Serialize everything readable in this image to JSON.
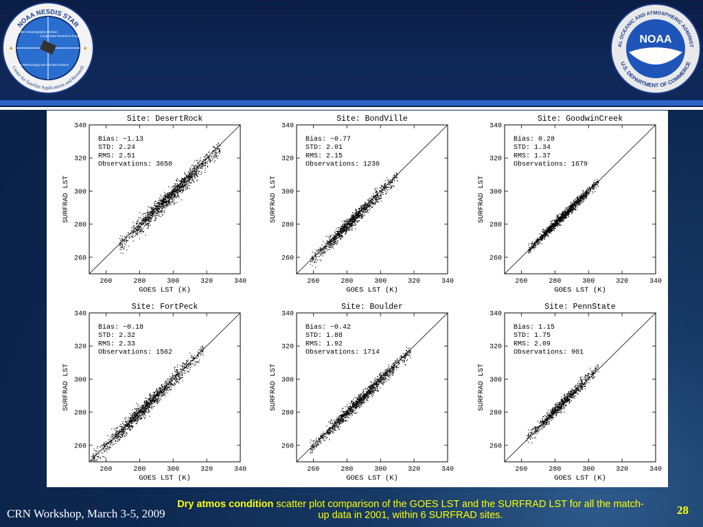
{
  "logos": {
    "left": {
      "ring_text_top": "NOAA NESDIS STAR",
      "ring_text_bottom": "Center for Satellite Applications and Research",
      "quad_1": "Satellite Oceanography Division",
      "quad_2": "Cooperative Research Program",
      "quad_3": "Satellite Meteorology and Climate Division"
    },
    "right": {
      "center": "NOAA",
      "ring_top": "NATIONAL OCEANIC AND ATMOSPHERIC ADMINISTRATION",
      "ring_bottom": "U.S. DEPARTMENT OF COMMERCE"
    }
  },
  "chart_data": [
    {
      "type": "scatter",
      "title": "Site: DesertRock",
      "xlabel": "GOES LST (K)",
      "ylabel": "SURFRAD LST",
      "xlim": [
        250,
        340
      ],
      "ylim": [
        250,
        340
      ],
      "xticks": [
        260,
        280,
        300,
        320,
        340
      ],
      "yticks": [
        260,
        280,
        300,
        320,
        340
      ],
      "reference_line": "y = x",
      "stats": {
        "bias": "Bias: −1.13",
        "std": "STD: 2.24",
        "rms": "RMS: 2.51",
        "obs": "Observations: 3650"
      },
      "cloud": {
        "x_range": [
          268,
          328
        ],
        "n_points": 3650,
        "sd": 2.5
      }
    },
    {
      "type": "scatter",
      "title": "Site: BondVille",
      "xlabel": "GOES LST (K)",
      "ylabel": "SURFRAD LST",
      "xlim": [
        250,
        340
      ],
      "ylim": [
        250,
        340
      ],
      "xticks": [
        260,
        280,
        300,
        320,
        340
      ],
      "yticks": [
        260,
        280,
        300,
        320,
        340
      ],
      "reference_line": "y = x",
      "stats": {
        "bias": "Bias: −0.77",
        "std": "STD: 2.01",
        "rms": "RMS: 2.15",
        "obs": "Observations: 1230"
      },
      "cloud": {
        "x_range": [
          258,
          310
        ],
        "n_points": 1230,
        "sd": 2.0
      }
    },
    {
      "type": "scatter",
      "title": "Site: GoodwinCreek",
      "xlabel": "GOES LST (K)",
      "ylabel": "SURFRAD LST",
      "xlim": [
        250,
        340
      ],
      "ylim": [
        250,
        340
      ],
      "xticks": [
        260,
        280,
        300,
        320,
        340
      ],
      "yticks": [
        260,
        280,
        300,
        320,
        340
      ],
      "reference_line": "y = x",
      "stats": {
        "bias": "Bias: 0.28",
        "std": "STD: 1.34",
        "rms": "RMS: 1.37",
        "obs": "Observations: 1679"
      },
      "cloud": {
        "x_range": [
          264,
          306
        ],
        "n_points": 1679,
        "sd": 1.4
      }
    },
    {
      "type": "scatter",
      "title": "Site: FortPeck",
      "xlabel": "GOES LST (K)",
      "ylabel": "SURFRAD LST",
      "xlim": [
        250,
        340
      ],
      "ylim": [
        250,
        340
      ],
      "xticks": [
        260,
        280,
        300,
        320,
        340
      ],
      "yticks": [
        260,
        280,
        300,
        320,
        340
      ],
      "reference_line": "y = x",
      "stats": {
        "bias": "Bias: −0.18",
        "std": "STD: 2.32",
        "rms": "RMS: 2.33",
        "obs": "Observations: 1562"
      },
      "cloud": {
        "x_range": [
          251,
          318
        ],
        "n_points": 1562,
        "sd": 2.3
      }
    },
    {
      "type": "scatter",
      "title": "Site: Boulder",
      "xlabel": "GOES LST (K)",
      "ylabel": "SURFRAD LST",
      "xlim": [
        250,
        340
      ],
      "ylim": [
        250,
        340
      ],
      "xticks": [
        260,
        280,
        300,
        320,
        340
      ],
      "yticks": [
        260,
        280,
        300,
        320,
        340
      ],
      "reference_line": "y = x",
      "stats": {
        "bias": "Bias: −0.42",
        "std": "STD: 1.88",
        "rms": "RMS: 1.92",
        "obs": "Observations: 1714"
      },
      "cloud": {
        "x_range": [
          258,
          318
        ],
        "n_points": 1714,
        "sd": 1.9
      }
    },
    {
      "type": "scatter",
      "title": "Site: PennState",
      "xlabel": "GOES LST (K)",
      "ylabel": "SURFRAD LST",
      "xlim": [
        250,
        340
      ],
      "ylim": [
        250,
        340
      ],
      "xticks": [
        260,
        280,
        300,
        320,
        340
      ],
      "yticks": [
        260,
        280,
        300,
        320,
        340
      ],
      "reference_line": "y = x",
      "stats": {
        "bias": "Bias: 1.15",
        "std": "STD: 1.75",
        "rms": "RMS: 2.09",
        "obs": "Observations: 901"
      },
      "cloud": {
        "x_range": [
          263,
          306
        ],
        "n_points": 901,
        "sd": 1.8
      }
    }
  ],
  "footer": {
    "workshop": "CRN Workshop, March 3-5, 2009",
    "caption_emphasis": "Dry atmos condition",
    "caption_rest": " scatter plot comparison of the GOES LST and the SURFRAD LST for all the match-up data in 2001, within 6 SURFRAD sites.",
    "page_number": "28"
  },
  "colors": {
    "accent_stripe": "#2e63c8",
    "caption": "#ffff00",
    "background": "#0d2850"
  }
}
